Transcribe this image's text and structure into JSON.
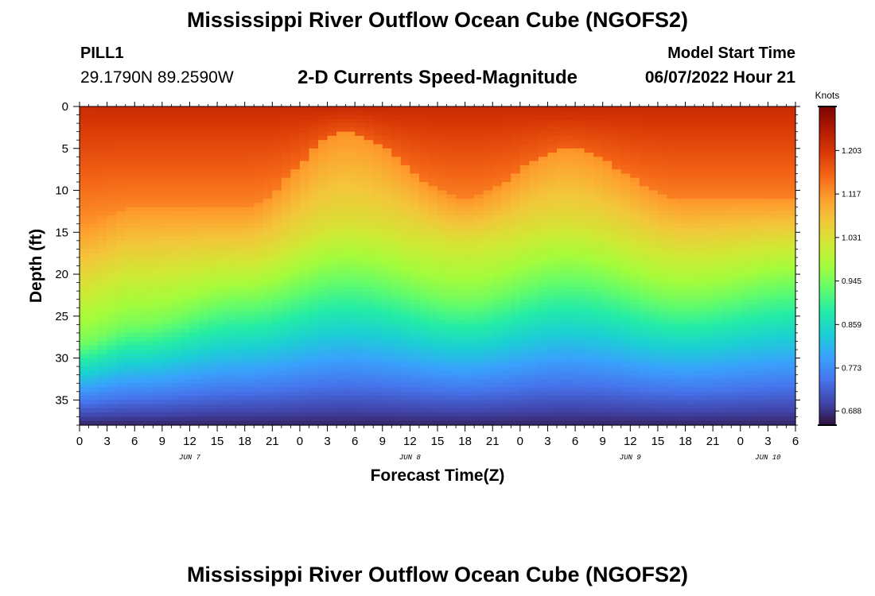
{
  "page": {
    "title_top": "Mississippi River Outflow Ocean Cube (NGOFS2)",
    "title_bottom": "Mississippi River Outflow Ocean Cube (NGOFS2)",
    "station_name": "PILL1",
    "station_coords": "29.1790N  89.2590W",
    "subtitle": "2-D Currents Speed-Magnitude",
    "model_start_label": "Model Start Time",
    "model_start_value": "06/07/2022 Hour 21"
  },
  "chart_data": {
    "type": "heatmap",
    "title": "2-D Currents Speed-Magnitude",
    "xlabel": "Forecast Time(Z)",
    "ylabel": "Depth (ft)",
    "x_tick_labels": [
      "0",
      "3",
      "6",
      "9",
      "12",
      "15",
      "18",
      "21",
      "0",
      "3",
      "6",
      "9",
      "12",
      "15",
      "18",
      "21",
      "0",
      "3",
      "6",
      "9",
      "12",
      "15",
      "18",
      "21",
      "0",
      "3",
      "6"
    ],
    "x_start_hours": 0,
    "x_end_hours": 78,
    "date_labels": [
      {
        "text": "JUN 7",
        "hour": 12
      },
      {
        "text": "JUN 8",
        "hour": 36
      },
      {
        "text": "JUN 9",
        "hour": 60
      },
      {
        "text": "JUN 10",
        "hour": 75
      }
    ],
    "y_ticks": [
      0,
      5,
      10,
      15,
      20,
      25,
      30,
      35
    ],
    "ylim": [
      0,
      38
    ],
    "y_inverted": true,
    "colorbar": {
      "label": "Knots",
      "ticks": [
        "1.203",
        "1.117",
        "1.031",
        "0.945",
        "0.859",
        "0.773",
        "0.688"
      ],
      "range": [
        0.66,
        1.29
      ],
      "colors": [
        "#30123b",
        "#4145ab",
        "#4675ed",
        "#39a2fc",
        "#1bcfd4",
        "#24eca6",
        "#61fc6c",
        "#a4fc3b",
        "#d1e834",
        "#f3c63a",
        "#fe9b2d",
        "#f36315",
        "#d93806",
        "#b11901",
        "#7a0402"
      ]
    },
    "cross_sections": [
      {
        "hour": 0,
        "iso_0945_depth_ft": 28,
        "iso_1031_depth_ft": 21,
        "iso_1117_depth_ft": 14
      },
      {
        "hour": 6,
        "iso_0945_depth_ft": 26,
        "iso_1031_depth_ft": 19,
        "iso_1117_depth_ft": 12
      },
      {
        "hour": 18,
        "iso_0945_depth_ft": 23,
        "iso_1031_depth_ft": 18,
        "iso_1117_depth_ft": 12
      },
      {
        "hour": 29,
        "iso_0945_depth_ft": 20,
        "iso_1031_depth_ft": 14,
        "iso_1117_depth_ft": 3
      },
      {
        "hour": 42,
        "iso_0945_depth_ft": 23,
        "iso_1031_depth_ft": 16,
        "iso_1117_depth_ft": 11
      },
      {
        "hour": 53,
        "iso_0945_depth_ft": 20,
        "iso_1031_depth_ft": 14,
        "iso_1117_depth_ft": 5
      },
      {
        "hour": 66,
        "iso_0945_depth_ft": 23,
        "iso_1031_depth_ft": 17,
        "iso_1117_depth_ft": 11
      },
      {
        "hour": 78,
        "iso_0945_depth_ft": 21,
        "iso_1031_depth_ft": 16,
        "iso_1117_depth_ft": 11
      }
    ]
  }
}
